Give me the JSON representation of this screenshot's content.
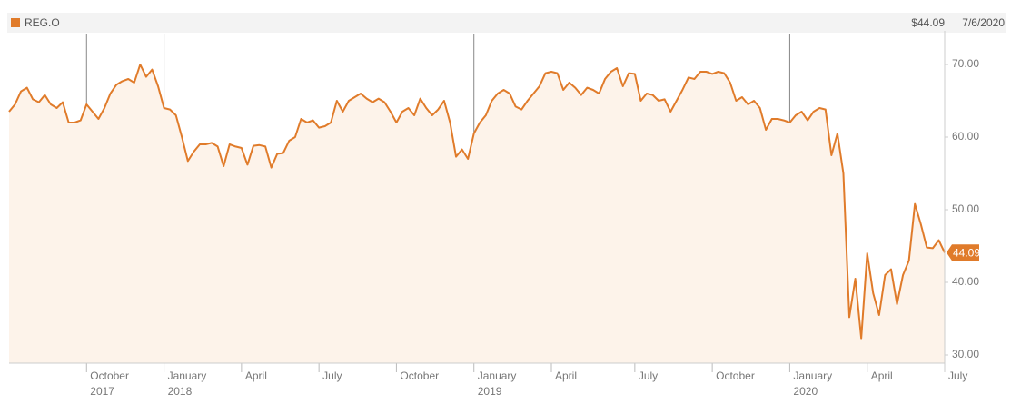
{
  "chart_data": {
    "type": "area",
    "series": [
      {
        "name": "REG.O",
        "color": "#e07b2a",
        "values": [
          63.5,
          64.5,
          66.3,
          66.8,
          65.2,
          64.8,
          65.8,
          64.5,
          64.0,
          64.8,
          62.0,
          62.0,
          62.3,
          64.5,
          63.5,
          62.5,
          64.0,
          66.0,
          67.2,
          67.7,
          68.0,
          67.5,
          70.0,
          68.3,
          69.3,
          67.0,
          64.0,
          63.8,
          63.0,
          60.0,
          56.7,
          58.0,
          59.0,
          59.0,
          59.2,
          58.7,
          56.0,
          59.0,
          58.7,
          58.5,
          56.2,
          58.8,
          58.9,
          58.7,
          55.8,
          57.7,
          57.8,
          59.5,
          60.0,
          62.5,
          62.0,
          62.3,
          61.3,
          61.5,
          62.0,
          65.0,
          63.5,
          65.0,
          65.5,
          66.0,
          65.3,
          64.8,
          65.3,
          64.8,
          63.5,
          62.0,
          63.5,
          64.0,
          63.0,
          65.3,
          64.0,
          63.0,
          63.8,
          65.0,
          62.0,
          57.3,
          58.3,
          57.0,
          60.5,
          62.0,
          63.0,
          65.0,
          66.0,
          66.5,
          66.0,
          64.2,
          63.8,
          65.0,
          66.0,
          67.0,
          68.8,
          69.0,
          68.8,
          66.5,
          67.5,
          66.8,
          65.8,
          66.8,
          66.5,
          66.0,
          68.0,
          69.0,
          69.5,
          67.0,
          68.8,
          68.7,
          65.0,
          66.0,
          65.8,
          65.0,
          65.2,
          63.5,
          65.0,
          66.5,
          68.2,
          68.0,
          69.0,
          69.0,
          68.7,
          69.0,
          68.8,
          67.5,
          65.0,
          65.5,
          64.5,
          65.0,
          64.0,
          61.0,
          62.5,
          62.5,
          62.3,
          62.0,
          63.0,
          63.5,
          62.3,
          63.5,
          64.0,
          63.8,
          57.5,
          60.5,
          55.0,
          35.2,
          40.5,
          32.3,
          44.0,
          38.5,
          35.5,
          41.0,
          41.8,
          37.0,
          41.0,
          43.0,
          50.8,
          48.0,
          44.8,
          44.7,
          45.8,
          44.09
        ]
      }
    ],
    "price": "$44.09",
    "date": "7/6/2020",
    "last_price": {
      "value": 44.09,
      "label": "44.09"
    },
    "xlim": [
      0,
      157
    ],
    "xticks": [
      {
        "value": 13,
        "label": "October",
        "sub": "2017"
      },
      {
        "value": 26,
        "label": "January",
        "sub": "2018"
      },
      {
        "value": 39,
        "label": "April"
      },
      {
        "value": 52,
        "label": "July"
      },
      {
        "value": 65,
        "label": "October"
      },
      {
        "value": 78,
        "label": "January",
        "sub": "2019"
      },
      {
        "value": 91,
        "label": "April"
      },
      {
        "value": 105,
        "label": "July"
      },
      {
        "value": 118,
        "label": "October"
      },
      {
        "value": 131,
        "label": "January",
        "sub": "2020"
      },
      {
        "value": 144,
        "label": "April"
      },
      {
        "value": 157,
        "label": "July"
      }
    ],
    "ylim": [
      28.875,
      74.125
    ],
    "yticks": [
      {
        "value": 30,
        "label": "30.00"
      },
      {
        "value": 40,
        "label": "40.00"
      },
      {
        "value": 50,
        "label": "50.00"
      },
      {
        "value": 60,
        "label": "60.00"
      },
      {
        "value": 70,
        "label": "70.00"
      }
    ],
    "fill": "#fdf3ea"
  }
}
